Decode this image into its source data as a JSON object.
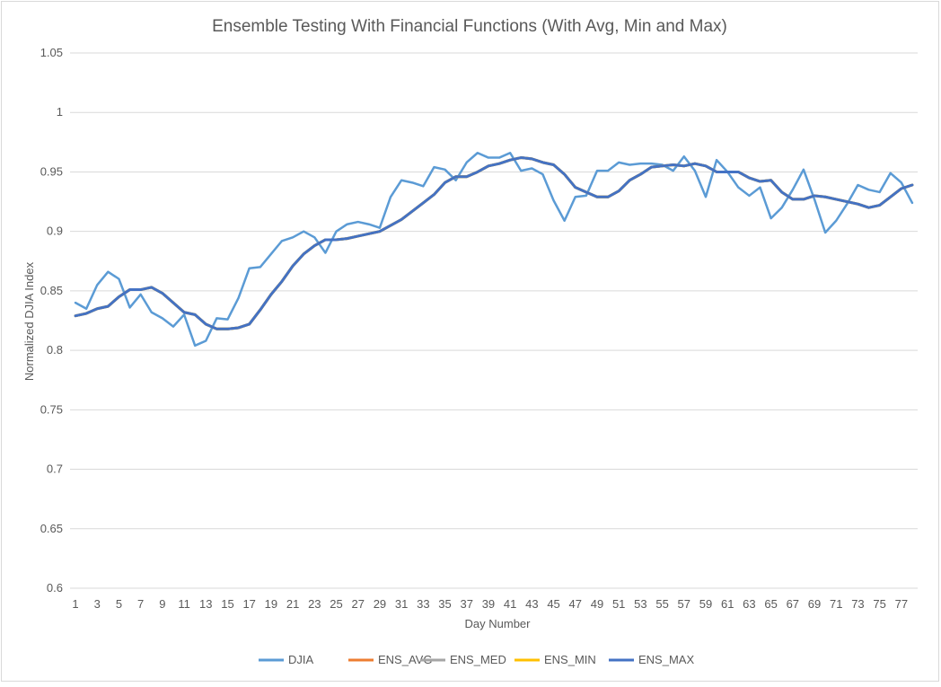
{
  "chart_data": {
    "type": "line",
    "title": "Ensemble Testing With Financial Functions (With Avg, Min and Max)",
    "xlabel": "Day Number",
    "ylabel": "Normalized DJIA Index",
    "ylim": [
      0.6,
      1.05
    ],
    "y_ticks": [
      "0.6",
      "0.65",
      "0.7",
      "0.75",
      "0.8",
      "0.85",
      "0.9",
      "0.95",
      "1",
      "1.05"
    ],
    "x": [
      1,
      2,
      3,
      4,
      5,
      6,
      7,
      8,
      9,
      10,
      11,
      12,
      13,
      14,
      15,
      16,
      17,
      18,
      19,
      20,
      21,
      22,
      23,
      24,
      25,
      26,
      27,
      28,
      29,
      30,
      31,
      32,
      33,
      34,
      35,
      36,
      37,
      38,
      39,
      40,
      41,
      42,
      43,
      44,
      45,
      46,
      47,
      48,
      49,
      50,
      51,
      52,
      53,
      54,
      55,
      56,
      57,
      58,
      59,
      60,
      61,
      62,
      63,
      64,
      65,
      66,
      67,
      68,
      69,
      70,
      71,
      72,
      73,
      74,
      75,
      76,
      77,
      78
    ],
    "x_tick_labels": [
      "1",
      "3",
      "5",
      "7",
      "9",
      "11",
      "13",
      "15",
      "17",
      "19",
      "21",
      "23",
      "25",
      "27",
      "29",
      "31",
      "33",
      "35",
      "37",
      "39",
      "41",
      "43",
      "45",
      "47",
      "49",
      "51",
      "53",
      "55",
      "57",
      "59",
      "61",
      "63",
      "65",
      "67",
      "69",
      "71",
      "73",
      "75",
      "77"
    ],
    "grid": true,
    "legend_position": "bottom",
    "series": [
      {
        "name": "DJIA",
        "color": "#5b9bd5",
        "values": [
          0.84,
          0.835,
          0.855,
          0.866,
          0.86,
          0.836,
          0.847,
          0.832,
          0.827,
          0.82,
          0.83,
          0.804,
          0.808,
          0.827,
          0.826,
          0.844,
          0.869,
          0.87,
          0.881,
          0.892,
          0.895,
          0.9,
          0.895,
          0.882,
          0.9,
          0.906,
          0.908,
          0.906,
          0.903,
          0.929,
          0.943,
          0.941,
          0.938,
          0.954,
          0.952,
          0.943,
          0.958,
          0.966,
          0.962,
          0.962,
          0.966,
          0.951,
          0.953,
          0.948,
          0.926,
          0.909,
          0.929,
          0.93,
          0.951,
          0.951,
          0.958,
          0.956,
          0.957,
          0.957,
          0.956,
          0.951,
          0.963,
          0.951,
          0.929,
          0.96,
          0.95,
          0.937,
          0.93,
          0.937,
          0.911,
          0.92,
          0.935,
          0.952,
          0.927,
          0.899,
          0.909,
          0.923,
          0.939,
          0.935,
          0.933,
          0.949,
          0.941,
          0.924
        ]
      },
      {
        "name": "ENS_AVG",
        "color": "#ed7d31",
        "values": [
          0.829,
          0.831,
          0.835,
          0.837,
          0.845,
          0.851,
          0.851,
          0.853,
          0.848,
          0.84,
          0.832,
          0.83,
          0.822,
          0.818,
          0.818,
          0.819,
          0.822,
          0.834,
          0.847,
          0.858,
          0.871,
          0.881,
          0.888,
          0.893,
          0.893,
          0.894,
          0.896,
          0.898,
          0.9,
          0.905,
          0.91,
          0.917,
          0.924,
          0.931,
          0.941,
          0.946,
          0.946,
          0.95,
          0.955,
          0.957,
          0.96,
          0.962,
          0.961,
          0.958,
          0.956,
          0.948,
          0.937,
          0.933,
          0.929,
          0.929,
          0.934,
          0.943,
          0.948,
          0.954,
          0.955,
          0.956,
          0.955,
          0.957,
          0.955,
          0.95,
          0.95,
          0.95,
          0.945,
          0.942,
          0.943,
          0.933,
          0.927,
          0.927,
          0.93,
          0.929,
          0.927,
          0.925,
          0.923,
          0.92,
          0.922,
          0.929,
          0.936,
          0.939
        ]
      },
      {
        "name": "ENS_MED",
        "color": "#a5a5a5",
        "values": [
          0.829,
          0.831,
          0.835,
          0.837,
          0.845,
          0.851,
          0.851,
          0.853,
          0.848,
          0.84,
          0.832,
          0.83,
          0.822,
          0.818,
          0.818,
          0.819,
          0.822,
          0.834,
          0.847,
          0.858,
          0.871,
          0.881,
          0.888,
          0.893,
          0.893,
          0.894,
          0.896,
          0.898,
          0.9,
          0.905,
          0.91,
          0.917,
          0.924,
          0.931,
          0.941,
          0.946,
          0.946,
          0.95,
          0.955,
          0.957,
          0.96,
          0.962,
          0.961,
          0.958,
          0.956,
          0.948,
          0.937,
          0.933,
          0.929,
          0.929,
          0.934,
          0.943,
          0.948,
          0.954,
          0.955,
          0.956,
          0.955,
          0.957,
          0.955,
          0.95,
          0.95,
          0.95,
          0.945,
          0.942,
          0.943,
          0.933,
          0.927,
          0.927,
          0.93,
          0.929,
          0.927,
          0.925,
          0.923,
          0.92,
          0.922,
          0.929,
          0.936,
          0.939
        ]
      },
      {
        "name": "ENS_MIN",
        "color": "#ffc000",
        "values": [
          0.829,
          0.831,
          0.835,
          0.837,
          0.845,
          0.851,
          0.851,
          0.853,
          0.848,
          0.84,
          0.832,
          0.83,
          0.822,
          0.818,
          0.818,
          0.819,
          0.822,
          0.834,
          0.847,
          0.858,
          0.871,
          0.881,
          0.888,
          0.893,
          0.893,
          0.894,
          0.896,
          0.898,
          0.9,
          0.905,
          0.91,
          0.917,
          0.924,
          0.931,
          0.941,
          0.946,
          0.946,
          0.95,
          0.955,
          0.957,
          0.96,
          0.962,
          0.961,
          0.958,
          0.956,
          0.948,
          0.937,
          0.933,
          0.929,
          0.929,
          0.934,
          0.943,
          0.948,
          0.954,
          0.955,
          0.956,
          0.955,
          0.957,
          0.955,
          0.95,
          0.95,
          0.95,
          0.945,
          0.942,
          0.943,
          0.933,
          0.927,
          0.927,
          0.93,
          0.929,
          0.927,
          0.925,
          0.923,
          0.92,
          0.922,
          0.929,
          0.936,
          0.939
        ]
      },
      {
        "name": "ENS_MAX",
        "color": "#4472c4",
        "values": [
          0.829,
          0.831,
          0.835,
          0.837,
          0.845,
          0.851,
          0.851,
          0.853,
          0.848,
          0.84,
          0.832,
          0.83,
          0.822,
          0.818,
          0.818,
          0.819,
          0.822,
          0.834,
          0.847,
          0.858,
          0.871,
          0.881,
          0.888,
          0.893,
          0.893,
          0.894,
          0.896,
          0.898,
          0.9,
          0.905,
          0.91,
          0.917,
          0.924,
          0.931,
          0.941,
          0.946,
          0.946,
          0.95,
          0.955,
          0.957,
          0.96,
          0.962,
          0.961,
          0.958,
          0.956,
          0.948,
          0.937,
          0.933,
          0.929,
          0.929,
          0.934,
          0.943,
          0.948,
          0.954,
          0.955,
          0.956,
          0.955,
          0.957,
          0.955,
          0.95,
          0.95,
          0.95,
          0.945,
          0.942,
          0.943,
          0.933,
          0.927,
          0.927,
          0.93,
          0.929,
          0.927,
          0.925,
          0.923,
          0.92,
          0.922,
          0.929,
          0.936,
          0.939
        ]
      }
    ]
  }
}
